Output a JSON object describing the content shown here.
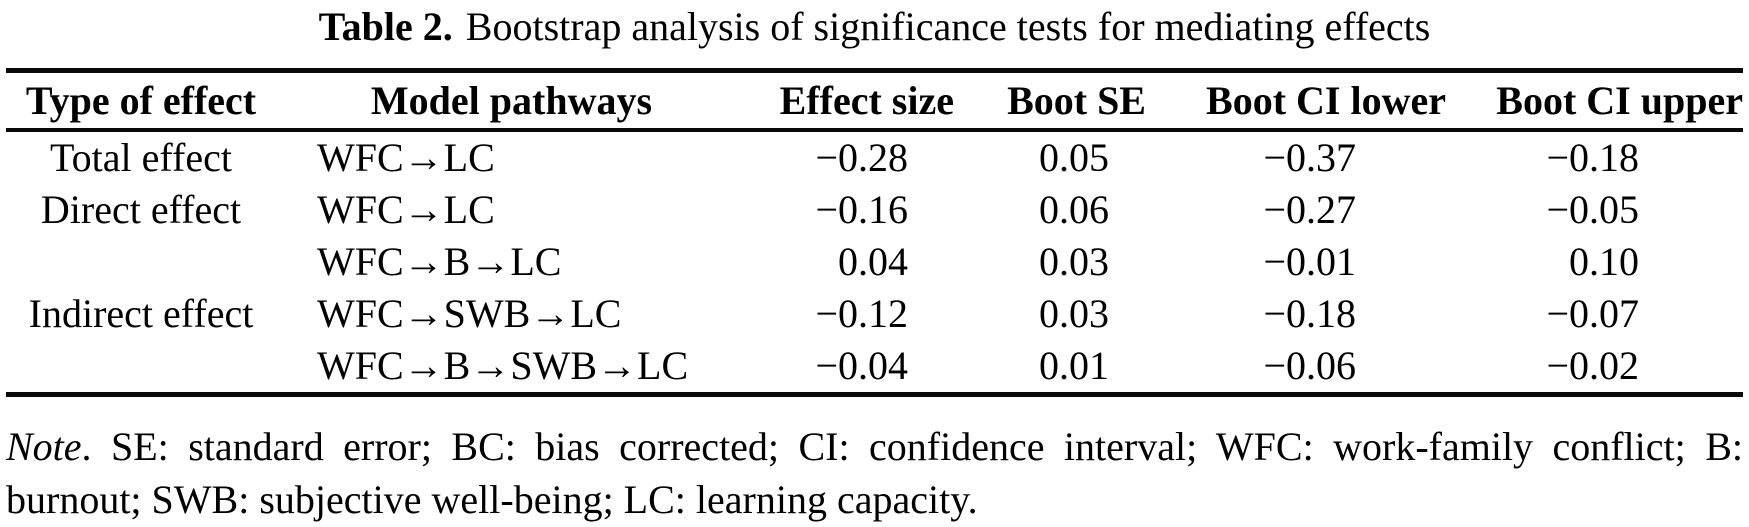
{
  "title": {
    "label": "Table 2.",
    "caption": "Bootstrap analysis of significance tests for mediating effects"
  },
  "table": {
    "columns": [
      "Type of effect",
      "Model pathways",
      "Effect size",
      "Boot SE",
      "Boot CI lower",
      "Boot CI upper"
    ],
    "rows": [
      {
        "type": "Total effect",
        "pathway": "WFC→LC",
        "effect_size": "−0.28",
        "boot_se": "0.05",
        "ci_lower": "−0.37",
        "ci_upper": "−0.18"
      },
      {
        "type": "Direct effect",
        "pathway": "WFC→LC",
        "effect_size": "−0.16",
        "boot_se": "0.06",
        "ci_lower": "−0.27",
        "ci_upper": "−0.05"
      },
      {
        "type": "",
        "pathway": "WFC→B→LC",
        "effect_size": "0.04",
        "boot_se": "0.03",
        "ci_lower": "−0.01",
        "ci_upper": "0.10"
      },
      {
        "type": "Indirect effect",
        "pathway": "WFC→SWB→LC",
        "effect_size": "−0.12",
        "boot_se": "0.03",
        "ci_lower": "−0.18",
        "ci_upper": "−0.07"
      },
      {
        "type": "",
        "pathway": "WFC→B→SWB→LC",
        "effect_size": "−0.04",
        "boot_se": "0.01",
        "ci_lower": "−0.06",
        "ci_upper": "−0.02"
      }
    ]
  },
  "note": {
    "label": "Note",
    "text": ". SE: standard error; BC: bias corrected; CI: confidence interval; WFC: work-family conflict; B: burnout; SWB: subjective well-being; LC: learning capacity."
  }
}
